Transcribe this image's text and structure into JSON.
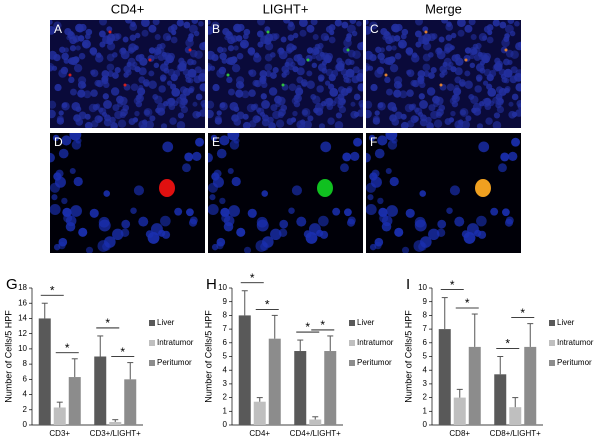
{
  "figure": {
    "columns": [
      "CD4+",
      "LIGHT+",
      "Merge"
    ],
    "panels": [
      "A",
      "B",
      "C",
      "D",
      "E",
      "F"
    ]
  },
  "chart_data": [
    {
      "type": "bar",
      "panel_label": "G",
      "y_label": "Number of Cells/5 HPF",
      "categories": [
        "CD3+",
        "CD3+/LIGHT+"
      ],
      "series": [
        {
          "name": "Liver",
          "color": "#595959",
          "values": [
            14,
            9
          ],
          "errors": [
            2,
            2.7
          ]
        },
        {
          "name": "Intratumor",
          "color": "#bfbfbf",
          "values": [
            2.3,
            0.4
          ],
          "errors": [
            0.7,
            0.3
          ]
        },
        {
          "name": "Peritumor",
          "color": "#8c8c8c",
          "values": [
            6.3,
            6
          ],
          "errors": [
            2.4,
            2.2
          ]
        }
      ],
      "ylim": [
        0,
        18
      ],
      "yticks": [
        0,
        2,
        4,
        6,
        8,
        10,
        12,
        14,
        16,
        18
      ],
      "annotations": [
        "*",
        "*",
        "*",
        "*"
      ],
      "legend": "right"
    },
    {
      "type": "bar",
      "panel_label": "H",
      "y_label": "Number of Cells/5 HPF",
      "categories": [
        "CD4+",
        "CD4+/LIGHT+"
      ],
      "series": [
        {
          "name": "Liver",
          "color": "#595959",
          "values": [
            8,
            5.4
          ],
          "errors": [
            1.8,
            0.8
          ]
        },
        {
          "name": "Intratumor",
          "color": "#bfbfbf",
          "values": [
            1.7,
            0.4
          ],
          "errors": [
            0.3,
            0.2
          ]
        },
        {
          "name": "Peritumor",
          "color": "#8c8c8c",
          "values": [
            6.3,
            5.4
          ],
          "errors": [
            1.7,
            1.1
          ]
        }
      ],
      "ylim": [
        0,
        10
      ],
      "yticks": [
        0,
        1,
        2,
        3,
        4,
        5,
        6,
        7,
        8,
        9,
        10
      ],
      "annotations": [
        "*",
        "*",
        "*",
        "*"
      ],
      "legend": "right"
    },
    {
      "type": "bar",
      "panel_label": "I",
      "y_label": "Number of Cells/5 HPF",
      "categories": [
        "CD8+",
        "CD8+/LIGHT+"
      ],
      "series": [
        {
          "name": "Liver",
          "color": "#595959",
          "values": [
            7,
            3.7
          ],
          "errors": [
            2.3,
            1.3
          ]
        },
        {
          "name": "Intratumor",
          "color": "#bfbfbf",
          "values": [
            2,
            1.3
          ],
          "errors": [
            0.6,
            0.7
          ]
        },
        {
          "name": "Peritumor",
          "color": "#8c8c8c",
          "values": [
            5.7,
            5.7
          ],
          "errors": [
            2.4,
            1.7
          ]
        }
      ],
      "ylim": [
        0,
        10
      ],
      "yticks": [
        0,
        1,
        2,
        3,
        4,
        5,
        6,
        7,
        8,
        9,
        10
      ],
      "annotations": [
        "*",
        "*",
        "*",
        "*"
      ],
      "legend": "right"
    }
  ]
}
